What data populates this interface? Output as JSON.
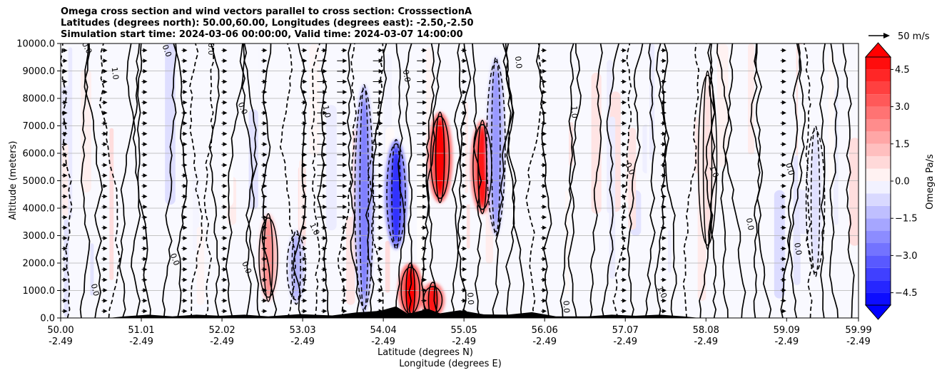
{
  "chart_data": {
    "type": "heatmap",
    "title_lines": [
      "Omega cross section and wind vectors parallel to cross section: CrosssectionA",
      "Latitudes (degrees north): 50.00,60.00, Longitudes (degrees east): -2.50,-2.50",
      "Simulation start time: 2024-03-06 00:00:00, Valid time: 2024-03-07 14:00:00"
    ],
    "xlabel_line1": "Latitude (degrees N)",
    "xlabel_line2": "Longitude (degrees E)",
    "ylabel": "Altitude (meters)",
    "xlim": [
      50.0,
      59.99
    ],
    "ylim": [
      0,
      10000
    ],
    "x_ticks": [
      {
        "lat": "50.00",
        "lon": "-2.49",
        "value": 50.0
      },
      {
        "lat": "51.01",
        "lon": "-2.49",
        "value": 51.01
      },
      {
        "lat": "52.02",
        "lon": "-2.49",
        "value": 52.02
      },
      {
        "lat": "53.03",
        "lon": "-2.49",
        "value": 53.03
      },
      {
        "lat": "54.04",
        "lon": "-2.49",
        "value": 54.04
      },
      {
        "lat": "55.05",
        "lon": "-2.49",
        "value": 55.05
      },
      {
        "lat": "56.06",
        "lon": "-2.49",
        "value": 56.06
      },
      {
        "lat": "57.07",
        "lon": "-2.49",
        "value": 57.07
      },
      {
        "lat": "58.08",
        "lon": "-2.49",
        "value": 58.08
      },
      {
        "lat": "59.09",
        "lon": "-2.49",
        "value": 59.09
      },
      {
        "lat": "59.99",
        "lon": "-2.49",
        "value": 59.99
      }
    ],
    "y_ticks": [
      {
        "label": "0.0",
        "value": 0
      },
      {
        "label": "1000.0",
        "value": 1000
      },
      {
        "label": "2000.0",
        "value": 2000
      },
      {
        "label": "3000.0",
        "value": 3000
      },
      {
        "label": "4000.0",
        "value": 4000
      },
      {
        "label": "5000.0",
        "value": 5000
      },
      {
        "label": "6000.0",
        "value": 6000
      },
      {
        "label": "7000.0",
        "value": 7000
      },
      {
        "label": "8000.0",
        "value": 8000
      },
      {
        "label": "9000.0",
        "value": 9000
      },
      {
        "label": "10000.0",
        "value": 10000
      }
    ],
    "grid": "horizontal",
    "colorbar": {
      "label": "Omega Pa/s",
      "range": [
        -5.0,
        5.0
      ],
      "extend": "both",
      "ticks": [
        {
          "label": "4.5",
          "value": 4.5
        },
        {
          "label": "3.0",
          "value": 3.0
        },
        {
          "label": "1.5",
          "value": 1.5
        },
        {
          "label": "0.0",
          "value": 0.0
        },
        {
          "label": "−1.5",
          "value": -1.5
        },
        {
          "label": "−3.0",
          "value": -3.0
        },
        {
          "label": "−4.5",
          "value": -4.5
        }
      ]
    },
    "quiver_key": {
      "label": "50 m/s",
      "speed": 50
    },
    "omega_features": [
      {
        "lat": 52.6,
        "alt_bottom": 600,
        "alt_top": 3800,
        "omega": 2.2
      },
      {
        "lat": 52.95,
        "alt_bottom": 500,
        "alt_top": 3200,
        "omega": -1.5
      },
      {
        "lat": 53.8,
        "alt_bottom": 200,
        "alt_top": 8500,
        "omega": -2.5
      },
      {
        "lat": 54.2,
        "alt_bottom": 2500,
        "alt_top": 6500,
        "omega": -4.0
      },
      {
        "lat": 54.38,
        "alt_bottom": 0,
        "alt_top": 2000,
        "omega": 5.0
      },
      {
        "lat": 54.75,
        "alt_bottom": 4200,
        "alt_top": 7500,
        "omega": 5.0
      },
      {
        "lat": 54.66,
        "alt_bottom": 0,
        "alt_top": 1300,
        "omega": 4.5
      },
      {
        "lat": 55.28,
        "alt_bottom": 3800,
        "alt_top": 7200,
        "omega": 4.5
      },
      {
        "lat": 55.45,
        "alt_bottom": 3000,
        "alt_top": 9500,
        "omega": -2.0
      },
      {
        "lat": 58.1,
        "alt_bottom": 2500,
        "alt_top": 9000,
        "omega": 0.6
      },
      {
        "lat": 59.45,
        "alt_bottom": 1500,
        "alt_top": 7000,
        "omega": -0.6
      }
    ],
    "contour_labels": [
      {
        "lat": 50.3,
        "alt": 9800,
        "text": "0.0"
      },
      {
        "lat": 50.65,
        "alt": 8900,
        "text": "1.0"
      },
      {
        "lat": 51.3,
        "alt": 9700,
        "text": "0.0"
      },
      {
        "lat": 51.85,
        "alt": 9800,
        "text": "0.0"
      },
      {
        "lat": 52.25,
        "alt": 7600,
        "text": "0.0"
      },
      {
        "lat": 53.3,
        "alt": 7500,
        "text": "1.0"
      },
      {
        "lat": 54.3,
        "alt": 8800,
        "text": "0.0"
      },
      {
        "lat": 55.7,
        "alt": 9300,
        "text": "0.0"
      },
      {
        "lat": 56.4,
        "alt": 7500,
        "text": "1.0"
      },
      {
        "lat": 57.1,
        "alt": 5400,
        "text": "0.0"
      },
      {
        "lat": 58.15,
        "alt": 5300,
        "text": "1.0"
      },
      {
        "lat": 58.6,
        "alt": 3400,
        "text": "0.0"
      },
      {
        "lat": 59.1,
        "alt": 5400,
        "text": "0.0"
      },
      {
        "lat": 50.4,
        "alt": 1000,
        "text": "0.0"
      },
      {
        "lat": 51.4,
        "alt": 2100,
        "text": "0.0"
      },
      {
        "lat": 52.3,
        "alt": 1800,
        "text": "0.0"
      },
      {
        "lat": 53.15,
        "alt": 3200,
        "text": "1.0"
      },
      {
        "lat": 55.1,
        "alt": 700,
        "text": "0.0"
      },
      {
        "lat": 56.3,
        "alt": 400,
        "text": "0.0"
      },
      {
        "lat": 57.5,
        "alt": 900,
        "text": "1.0"
      },
      {
        "lat": 59.2,
        "alt": 2500,
        "text": "0.0"
      }
    ]
  }
}
